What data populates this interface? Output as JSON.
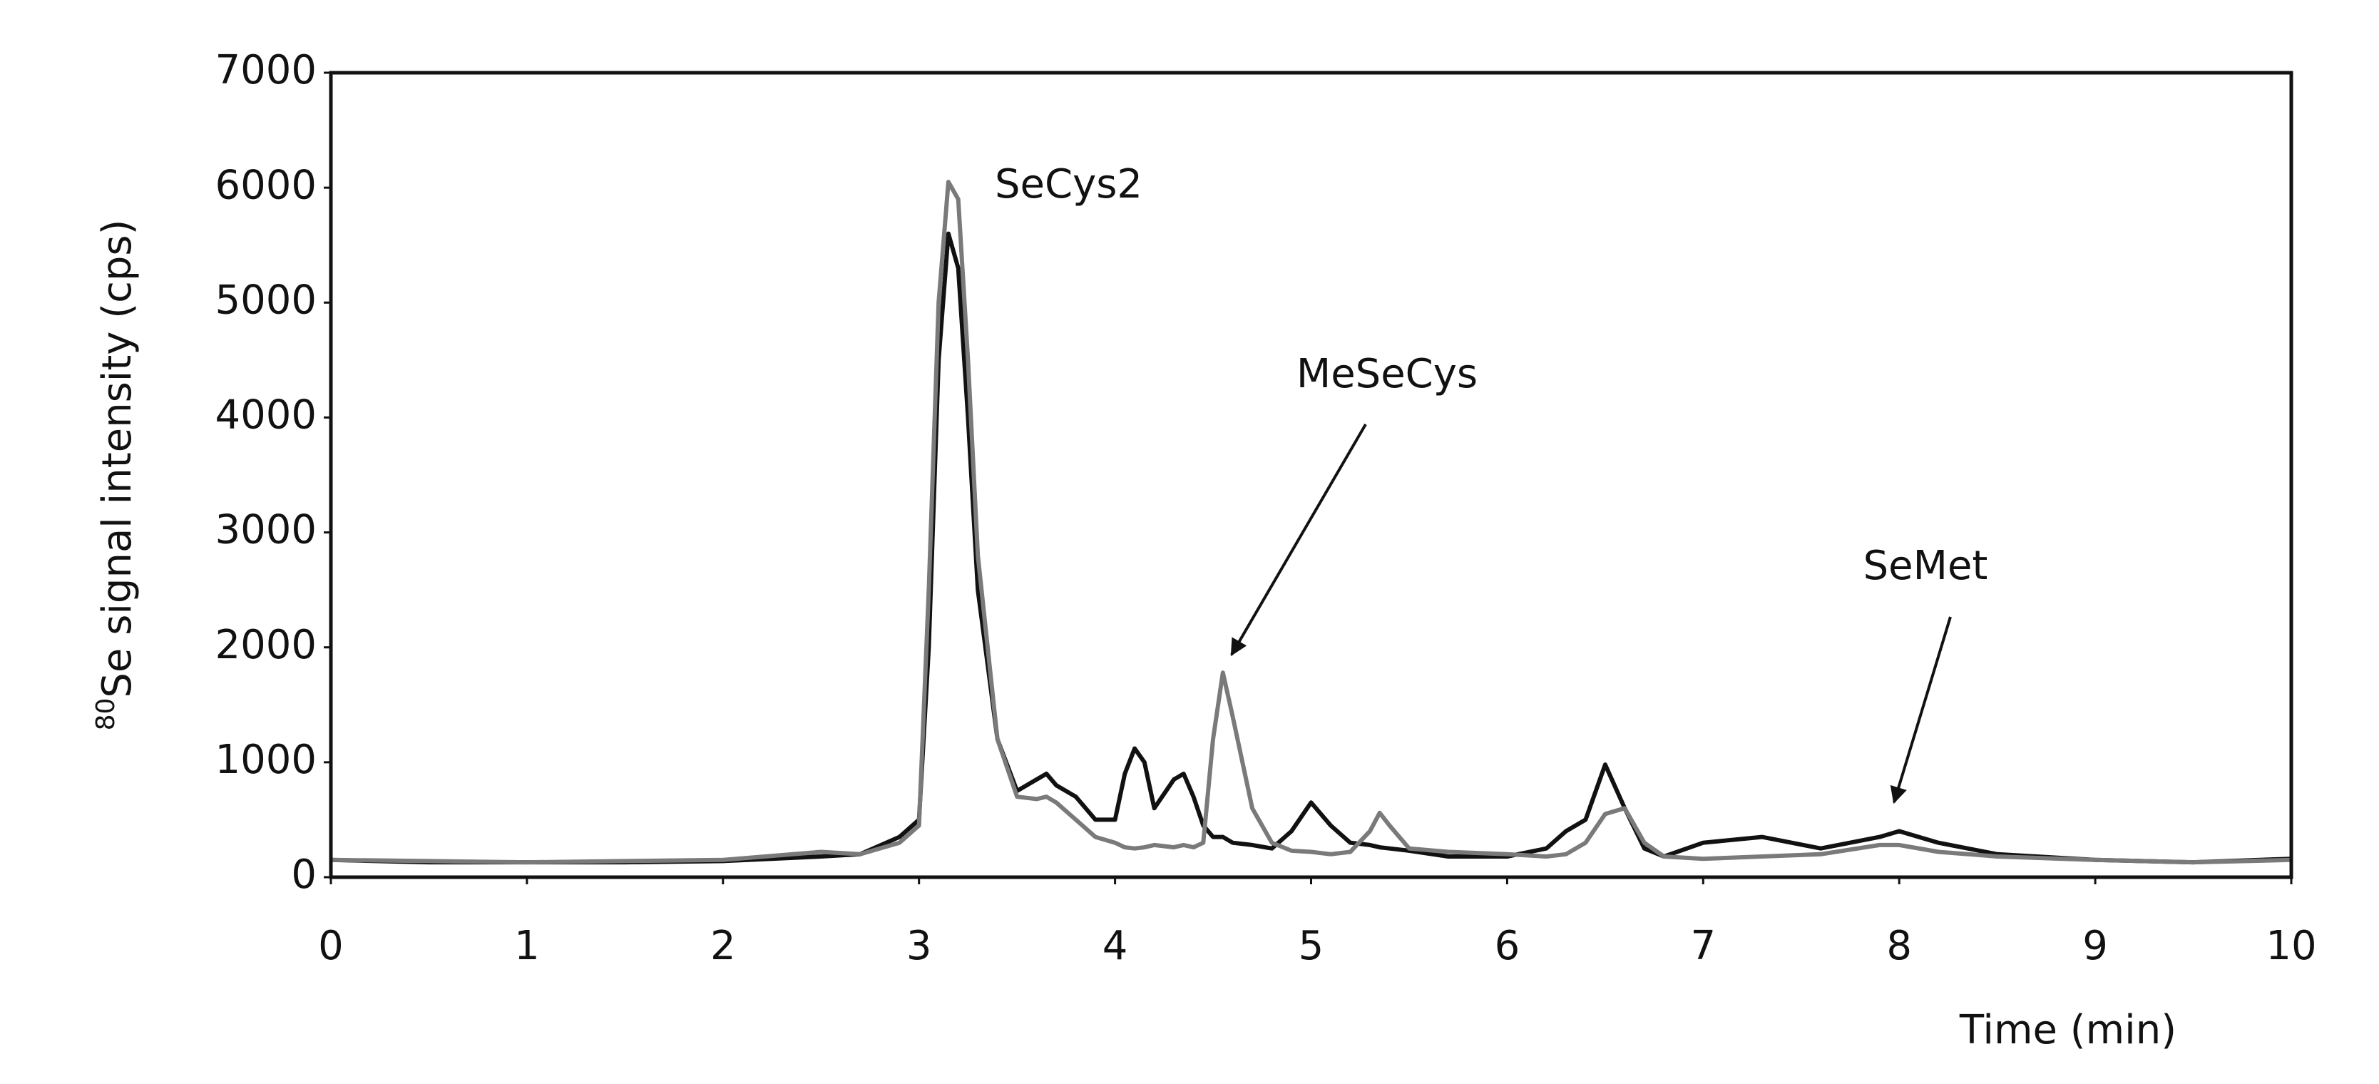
{
  "chart_data": {
    "type": "line",
    "ylabel_sup": "80",
    "ylabel": "Se signal intensity (cps)",
    "xlabel": "Time (min)",
    "annotations": [
      "SeCys2",
      "MeSeCys",
      "SeMet"
    ],
    "x": [
      0,
      0.5,
      1,
      1.5,
      2,
      2.5,
      2.7,
      2.9,
      3.0,
      3.05,
      3.1,
      3.15,
      3.2,
      3.25,
      3.3,
      3.4,
      3.5,
      3.6,
      3.65,
      3.7,
      3.8,
      3.9,
      4.0,
      4.05,
      4.1,
      4.15,
      4.2,
      4.3,
      4.35,
      4.4,
      4.45,
      4.5,
      4.55,
      4.6,
      4.7,
      4.8,
      4.9,
      5.0,
      5.1,
      5.2,
      5.3,
      5.35,
      5.4,
      5.5,
      5.7,
      6.0,
      6.2,
      6.3,
      6.4,
      6.5,
      6.6,
      6.7,
      6.8,
      7.0,
      7.3,
      7.6,
      7.9,
      8.0,
      8.2,
      8.5,
      9.0,
      9.5,
      10
    ],
    "series": [
      {
        "color": "#111111",
        "values": [
          150,
          130,
          130,
          130,
          140,
          180,
          200,
          350,
          500,
          2000,
          4500,
          5600,
          5300,
          4000,
          2500,
          1200,
          750,
          850,
          900,
          800,
          700,
          500,
          500,
          900,
          1120,
          1000,
          600,
          850,
          900,
          700,
          450,
          350,
          350,
          300,
          280,
          250,
          400,
          650,
          450,
          300,
          280,
          260,
          250,
          230,
          180,
          180,
          250,
          400,
          500,
          980,
          600,
          250,
          180,
          300,
          350,
          250,
          350,
          400,
          300,
          200,
          150,
          130,
          160
        ]
      },
      {
        "color": "#7a7a7a",
        "values": [
          150,
          140,
          130,
          140,
          150,
          220,
          200,
          300,
          450,
          2500,
          5000,
          6050,
          5900,
          4500,
          2800,
          1200,
          700,
          680,
          700,
          650,
          500,
          350,
          300,
          260,
          250,
          260,
          280,
          260,
          280,
          260,
          300,
          1200,
          1780,
          1400,
          600,
          300,
          230,
          220,
          200,
          220,
          400,
          560,
          450,
          250,
          220,
          200,
          180,
          200,
          300,
          550,
          600,
          300,
          180,
          160,
          180,
          200,
          280,
          280,
          220,
          180,
          150,
          130,
          150
        ]
      }
    ],
    "xlim": [
      0,
      10
    ],
    "xticks": [
      0,
      1,
      2,
      3,
      4,
      5,
      6,
      7,
      8,
      9,
      10
    ],
    "ylim": [
      0,
      7000
    ],
    "yticks": [
      0,
      1000,
      2000,
      3000,
      4000,
      5000,
      6000,
      7000
    ]
  }
}
